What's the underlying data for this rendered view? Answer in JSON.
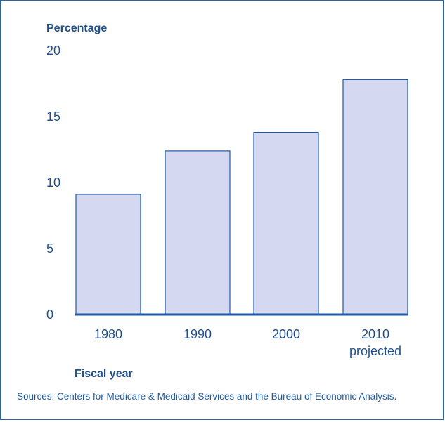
{
  "chart_data": {
    "type": "bar",
    "ylabel": "Percentage",
    "xlabel": "Fiscal year",
    "categories": [
      "1980",
      "1990",
      "2000",
      "2010"
    ],
    "category_sublabels": [
      "",
      "",
      "",
      "projected"
    ],
    "values": [
      9.1,
      12.4,
      13.8,
      17.8
    ],
    "ylim": [
      0,
      20
    ],
    "yticks": [
      "0",
      "5",
      "10",
      "15",
      "20"
    ],
    "grid": false,
    "colors": {
      "bar_fill": "#d4d8f0",
      "bar_stroke": "#1f5aa6",
      "axis": "#1f5aa6",
      "text": "#1f4e8c"
    }
  },
  "source_note": "Sources: Centers for Medicare & Medicaid Services and the Bureau of Economic Analysis."
}
